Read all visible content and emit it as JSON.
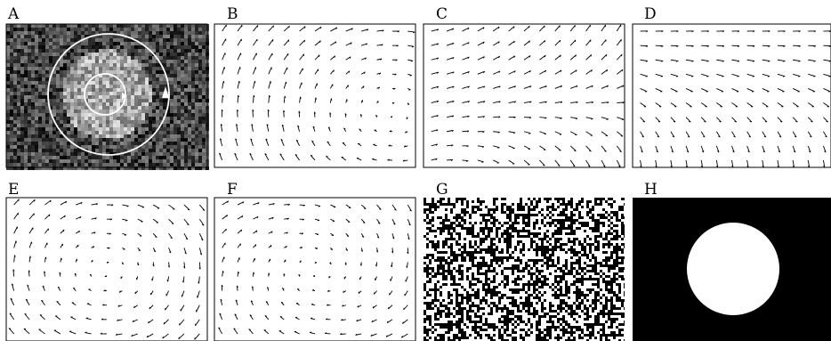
{
  "figure": {
    "panels": [
      {
        "id": "A",
        "label": "A",
        "kind": "noisy-disk-image"
      },
      {
        "id": "B",
        "label": "B",
        "kind": "vector-field"
      },
      {
        "id": "C",
        "label": "C",
        "kind": "vector-field"
      },
      {
        "id": "D",
        "label": "D",
        "kind": "vector-field"
      },
      {
        "id": "E",
        "label": "E",
        "kind": "vector-field"
      },
      {
        "id": "F",
        "label": "F",
        "kind": "vector-field"
      },
      {
        "id": "G",
        "label": "G",
        "kind": "binary-noise"
      },
      {
        "id": "H",
        "label": "H",
        "kind": "binary-disk"
      }
    ],
    "colors": {
      "stroke": "#000000",
      "background": "#ffffff",
      "image_dark": "#3a3a3a",
      "image_light": "#d8d8d8"
    }
  }
}
